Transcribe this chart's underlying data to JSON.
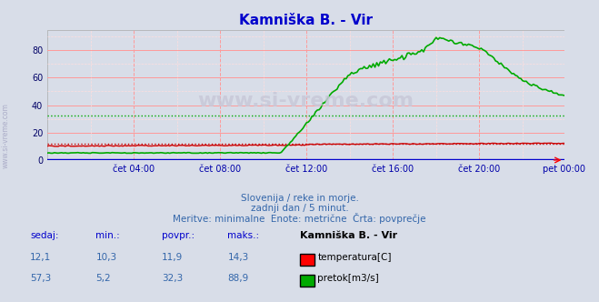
{
  "title": "Kamniška B. - Vir",
  "bg_color": "#d8dde8",
  "plot_bg_color": "#d8dde8",
  "grid_color_major": "#ff9999",
  "grid_color_minor": "#ffdddd",
  "x_labels": [
    "čet 04:00",
    "čet 08:00",
    "čet 12:00",
    "čet 16:00",
    "čet 20:00",
    "pet 00:00"
  ],
  "y_ticks": [
    0,
    20,
    40,
    60,
    80
  ],
  "ylim": [
    0,
    95
  ],
  "temp_avg": 11.9,
  "flow_avg": 32.3,
  "temp_color": "#cc0000",
  "flow_color": "#00aa00",
  "avg_line_color_temp": "#cc0000",
  "avg_line_color_flow": "#00cc00",
  "watermark_text": "www.si-vreme.com",
  "subtitle1": "Slovenija / reke in morje.",
  "subtitle2": "zadnji dan / 5 minut.",
  "subtitle3": "Meritve: minimalne  Enote: metrične  Črta: povprečje",
  "table_header": [
    "sedaj:",
    "min.:",
    "povpr.:",
    "maks.:",
    "Kamniška B. - Vir"
  ],
  "table_row1": [
    "12,1",
    "10,3",
    "11,9",
    "14,3",
    "temperatura[C]"
  ],
  "table_row2": [
    "57,3",
    "5,2",
    "32,3",
    "88,9",
    "pretok[m3/s]"
  ],
  "n_points": 288,
  "temp_base": 10.0,
  "flow_peak_time": 216,
  "flow_peak_val": 88.9,
  "xlim": [
    0,
    287
  ]
}
